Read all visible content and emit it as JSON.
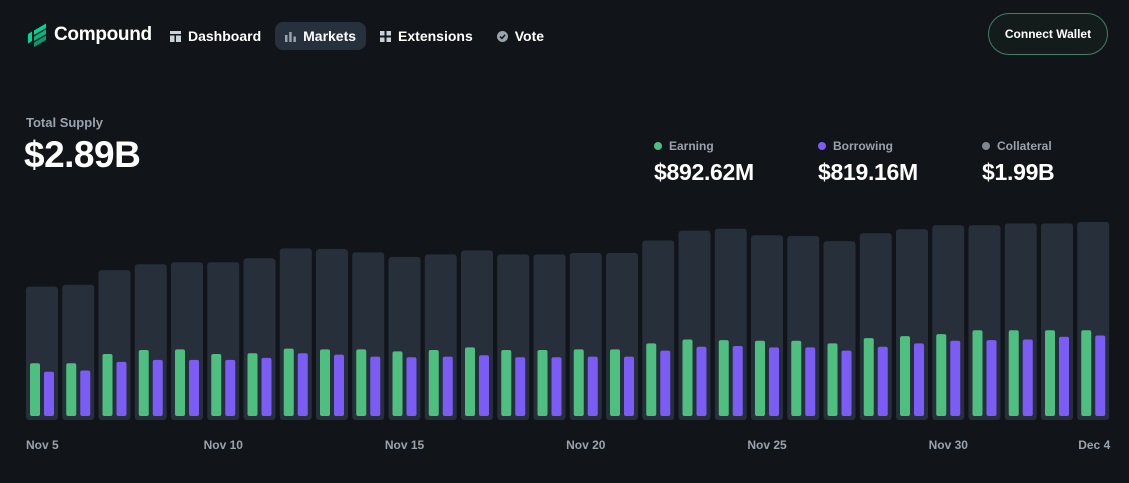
{
  "brand": {
    "name": "Compound",
    "accent": "#00D395"
  },
  "nav": [
    {
      "label": "Dashboard",
      "icon": "dashboard-icon",
      "active": false
    },
    {
      "label": "Markets",
      "icon": "bar-chart-icon",
      "active": true
    },
    {
      "label": "Extensions",
      "icon": "grid-icon",
      "active": false
    },
    {
      "label": "Vote",
      "icon": "check-circle-icon",
      "active": false
    }
  ],
  "connect_wallet_label": "Connect Wallet",
  "summary": {
    "total_supply_label": "Total Supply",
    "total_supply_value": "$2.89B",
    "stats": [
      {
        "label": "Earning",
        "value": "$892.62M",
        "color": "#4fbf7f"
      },
      {
        "label": "Borrowing",
        "value": "$819.16M",
        "color": "#7b5cf5"
      },
      {
        "label": "Collateral",
        "value": "$1.99B",
        "color": "#7f8891"
      }
    ]
  },
  "chart_data": {
    "type": "bar",
    "title": "Total Supply",
    "x_tick_labels": [
      "Nov 5",
      "Nov 10",
      "Nov 15",
      "Nov 20",
      "Nov 25",
      "Nov 30",
      "Dec 4"
    ],
    "categories": [
      "Nov 5",
      "Nov 6",
      "Nov 7",
      "Nov 8",
      "Nov 9",
      "Nov 10",
      "Nov 11",
      "Nov 12",
      "Nov 13",
      "Nov 14",
      "Nov 15",
      "Nov 16",
      "Nov 17",
      "Nov 18",
      "Nov 19",
      "Nov 20",
      "Nov 21",
      "Nov 22",
      "Nov 23",
      "Nov 24",
      "Nov 25",
      "Nov 26",
      "Nov 27",
      "Nov 28",
      "Nov 29",
      "Nov 30",
      "Dec 1",
      "Dec 2",
      "Dec 3",
      "Dec 4"
    ],
    "ylim": [
      0,
      3.0
    ],
    "unit": "$B",
    "series": [
      {
        "name": "Total Supply",
        "color": "#262f3a",
        "values": [
          2.02,
          2.05,
          2.27,
          2.36,
          2.39,
          2.39,
          2.45,
          2.6,
          2.59,
          2.54,
          2.47,
          2.51,
          2.57,
          2.51,
          2.51,
          2.53,
          2.53,
          2.72,
          2.87,
          2.9,
          2.8,
          2.79,
          2.71,
          2.83,
          2.89,
          2.95,
          2.95,
          2.98,
          2.98,
          3.0
        ]
      },
      {
        "name": "Earning",
        "color": "#4fbf7f",
        "values": [
          0.8,
          0.8,
          0.94,
          1.0,
          1.01,
          0.94,
          0.95,
          1.02,
          1.01,
          1.01,
          0.98,
          1.0,
          1.04,
          1.0,
          1.0,
          1.01,
          1.01,
          1.1,
          1.16,
          1.15,
          1.14,
          1.14,
          1.1,
          1.18,
          1.21,
          1.24,
          1.3,
          1.3,
          1.3,
          1.3
        ]
      },
      {
        "name": "Borrowing",
        "color": "#7b5cf5",
        "values": [
          0.67,
          0.69,
          0.82,
          0.85,
          0.85,
          0.85,
          0.88,
          0.95,
          0.93,
          0.9,
          0.89,
          0.9,
          0.92,
          0.89,
          0.89,
          0.9,
          0.9,
          0.99,
          1.05,
          1.06,
          1.04,
          1.04,
          0.99,
          1.05,
          1.1,
          1.14,
          1.15,
          1.16,
          1.2,
          1.22
        ]
      }
    ],
    "legend": [
      "Earning",
      "Borrowing",
      "Collateral"
    ],
    "grid": false
  }
}
